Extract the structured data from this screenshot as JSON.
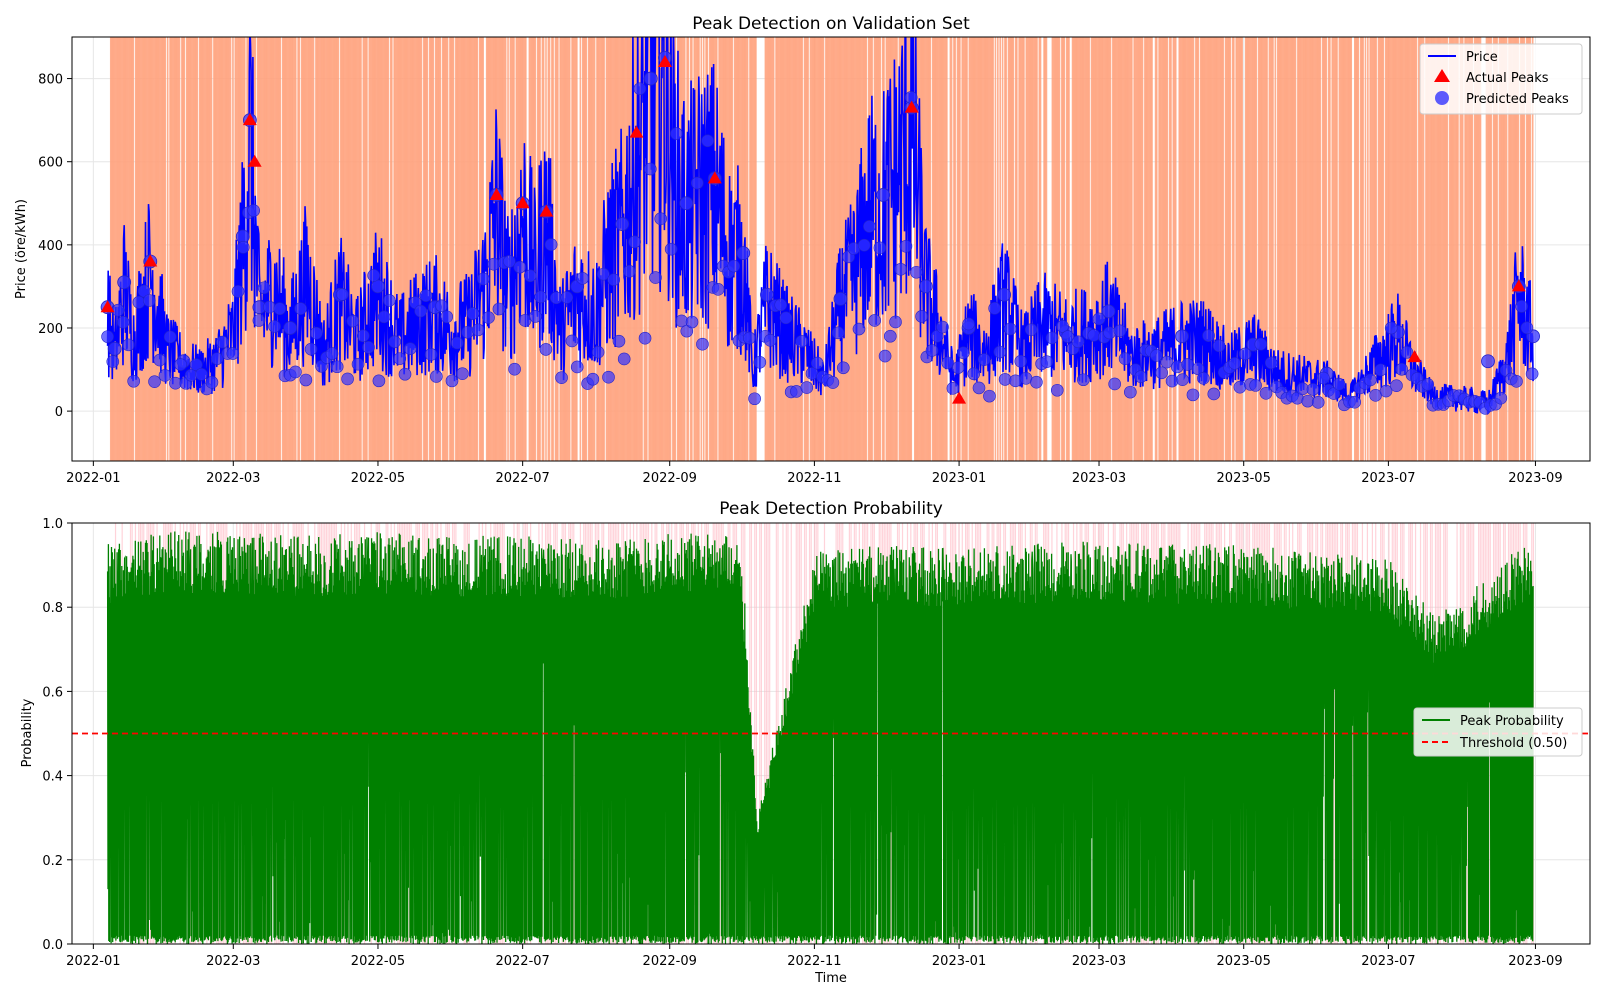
{
  "chart_data": [
    {
      "type": "line",
      "title": "Peak Detection on Validation Set",
      "xlabel": "",
      "ylabel": "Price (öre/kWh)",
      "x_range": [
        "2021-12-23",
        "2023-09-24"
      ],
      "ylim": [
        -120,
        900
      ],
      "xticks": [
        "2022-01",
        "2022-03",
        "2022-05",
        "2022-07",
        "2022-09",
        "2022-11",
        "2023-01",
        "2023-03",
        "2023-05",
        "2023-07",
        "2023-09"
      ],
      "yticks": [
        0,
        200,
        400,
        600,
        800
      ],
      "grid": true,
      "legend_position": "upper right",
      "legend": [
        "Price",
        "Actual Peaks",
        "Predicted Peaks"
      ],
      "colors": {
        "price": "#0000ff",
        "actual_peaks": "#ff0000",
        "predicted_peaks": "#3333ff",
        "shading": "#ffa07a"
      },
      "series": [
        {
          "name": "Price",
          "style": "line",
          "x": [
            "2022-01-07",
            "2022-01-10",
            "2022-01-14",
            "2022-01-18",
            "2022-01-25",
            "2022-02-01",
            "2022-02-08",
            "2022-02-15",
            "2022-02-22",
            "2022-03-01",
            "2022-03-05",
            "2022-03-08",
            "2022-03-12",
            "2022-03-18",
            "2022-03-25",
            "2022-04-01",
            "2022-04-08",
            "2022-04-15",
            "2022-04-22",
            "2022-05-01",
            "2022-05-10",
            "2022-05-18",
            "2022-05-25",
            "2022-06-01",
            "2022-06-08",
            "2022-06-15",
            "2022-06-20",
            "2022-06-25",
            "2022-07-01",
            "2022-07-06",
            "2022-07-11",
            "2022-07-17",
            "2022-07-24",
            "2022-08-01",
            "2022-08-06",
            "2022-08-12",
            "2022-08-18",
            "2022-08-24",
            "2022-08-30",
            "2022-09-03",
            "2022-09-08",
            "2022-09-14",
            "2022-09-20",
            "2022-09-26",
            "2022-10-02",
            "2022-10-06",
            "2022-10-12",
            "2022-10-20",
            "2022-10-28",
            "2022-11-05",
            "2022-11-12",
            "2022-11-18",
            "2022-11-24",
            "2022-11-30",
            "2022-12-06",
            "2022-12-12",
            "2022-12-18",
            "2022-12-24",
            "2022-12-30",
            "2023-01-05",
            "2023-01-12",
            "2023-01-20",
            "2023-01-28",
            "2023-02-05",
            "2023-02-15",
            "2023-02-25",
            "2023-03-05",
            "2023-03-15",
            "2023-03-25",
            "2023-04-05",
            "2023-04-15",
            "2023-04-25",
            "2023-05-05",
            "2023-05-15",
            "2023-05-25",
            "2023-06-05",
            "2023-06-15",
            "2023-06-25",
            "2023-07-05",
            "2023-07-12",
            "2023-07-20",
            "2023-07-28",
            "2023-08-05",
            "2023-08-12",
            "2023-08-20",
            "2023-08-25",
            "2023-08-31"
          ],
          "y": [
            250,
            150,
            310,
            180,
            360,
            160,
            120,
            100,
            130,
            200,
            420,
            700,
            250,
            310,
            200,
            340,
            150,
            280,
            180,
            300,
            180,
            230,
            250,
            200,
            220,
            320,
            520,
            300,
            500,
            350,
            480,
            200,
            300,
            250,
            380,
            450,
            650,
            800,
            850,
            600,
            500,
            550,
            560,
            400,
            380,
            100,
            280,
            200,
            150,
            80,
            270,
            350,
            500,
            520,
            600,
            730,
            300,
            200,
            80,
            200,
            150,
            280,
            150,
            220,
            190,
            200,
            240,
            140,
            150,
            180,
            180,
            120,
            160,
            100,
            90,
            80,
            40,
            120,
            190,
            100,
            40,
            35,
            30,
            20,
            130,
            300,
            180
          ]
        },
        {
          "name": "Actual Peaks",
          "style": "marker",
          "x": [
            "2022-01-07",
            "2022-01-25",
            "2022-03-08",
            "2022-03-10",
            "2022-06-20",
            "2022-07-01",
            "2022-07-11",
            "2022-08-18",
            "2022-08-30",
            "2022-09-20",
            "2022-12-12",
            "2023-01-01",
            "2023-07-12",
            "2023-08-25"
          ],
          "y": [
            250,
            360,
            700,
            600,
            520,
            500,
            480,
            670,
            840,
            560,
            730,
            30,
            130,
            300
          ]
        },
        {
          "name": "Predicted Peaks",
          "style": "marker",
          "x": [
            "2022-01-07",
            "2022-01-10",
            "2022-01-14",
            "2022-01-25",
            "2022-02-08",
            "2022-03-05",
            "2022-03-08",
            "2022-03-12",
            "2022-03-25",
            "2022-04-15",
            "2022-05-01",
            "2022-05-25",
            "2022-06-20",
            "2022-07-01",
            "2022-07-11",
            "2022-07-24",
            "2022-08-12",
            "2022-08-24",
            "2022-08-30",
            "2022-09-08",
            "2022-09-20",
            "2022-10-02",
            "2022-10-12",
            "2022-11-12",
            "2022-11-30",
            "2022-12-12",
            "2022-12-18",
            "2023-01-05",
            "2023-01-20",
            "2023-02-15",
            "2023-03-05",
            "2023-04-05",
            "2023-05-05",
            "2023-06-05",
            "2023-07-05",
            "2023-08-12",
            "2023-08-25",
            "2023-08-31"
          ],
          "y": [
            250,
            150,
            310,
            360,
            120,
            420,
            700,
            250,
            200,
            280,
            300,
            250,
            520,
            500,
            480,
            300,
            450,
            800,
            850,
            500,
            560,
            380,
            280,
            270,
            520,
            730,
            300,
            200,
            280,
            190,
            240,
            180,
            160,
            90,
            190,
            120,
            300,
            180
          ]
        }
      ]
    },
    {
      "type": "area",
      "title": "Peak Detection Probability",
      "xlabel": "Time",
      "ylabel": "Probability",
      "x_range": [
        "2021-12-23",
        "2023-09-24"
      ],
      "ylim": [
        0,
        1
      ],
      "xticks": [
        "2022-01",
        "2022-03",
        "2022-05",
        "2022-07",
        "2022-09",
        "2022-11",
        "2023-01",
        "2023-03",
        "2023-05",
        "2023-07",
        "2023-09"
      ],
      "yticks": [
        0.0,
        0.2,
        0.4,
        0.6,
        0.8,
        1.0
      ],
      "grid": true,
      "legend_position": "center right",
      "legend": [
        "Peak Probability",
        "Threshold (0.50)"
      ],
      "colors": {
        "probability": "#008000",
        "threshold": "#ff0000",
        "peak_shading": "#ffb6c1"
      },
      "threshold": 0.5,
      "series": [
        {
          "name": "Peak Probability",
          "note_shape": "dense oscillation between low values and an upper envelope",
          "x": [
            "2022-01-07",
            "2022-02-01",
            "2022-03-01",
            "2022-04-01",
            "2022-05-01",
            "2022-06-01",
            "2022-07-01",
            "2022-08-01",
            "2022-09-01",
            "2022-10-01",
            "2022-10-08",
            "2022-11-01",
            "2022-12-01",
            "2023-01-01",
            "2023-02-01",
            "2023-03-01",
            "2023-04-01",
            "2023-05-01",
            "2023-06-01",
            "2023-07-01",
            "2023-07-20",
            "2023-08-01",
            "2023-08-20",
            "2023-08-31"
          ],
          "upper": [
            0.95,
            0.98,
            0.98,
            0.97,
            0.98,
            0.97,
            0.97,
            0.96,
            0.98,
            0.97,
            0.3,
            0.93,
            0.95,
            0.94,
            0.95,
            0.96,
            0.95,
            0.95,
            0.93,
            0.92,
            0.78,
            0.82,
            0.92,
            0.96
          ]
        },
        {
          "name": "Threshold (0.50)",
          "style": "dashed",
          "y": [
            0.5,
            0.5
          ]
        }
      ]
    }
  ]
}
